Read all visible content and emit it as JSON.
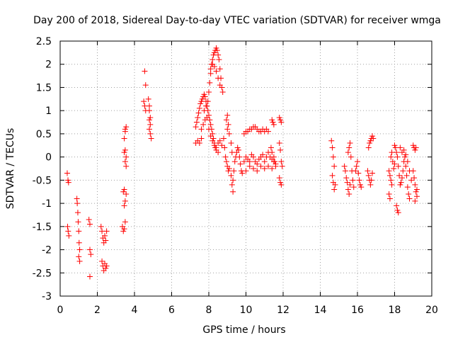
{
  "chart_data": {
    "type": "scatter",
    "title": "Day 200 of 2018, Sidereal Day-to-day VTEC variation (SDTVAR) for receiver wmga",
    "xlabel": "GPS time / hours",
    "ylabel": "SDTVAR / TECUs",
    "xlim": [
      0,
      20
    ],
    "ylim": [
      -3,
      2.5
    ],
    "xticks": [
      "0",
      "2",
      "4",
      "6",
      "8",
      "10",
      "12",
      "14",
      "16",
      "18",
      "20"
    ],
    "yticks": [
      "-3",
      "-2.5",
      "-2",
      "-1.5",
      "-1",
      "-0.5",
      "0",
      "0.5",
      "1",
      "1.5",
      "2",
      "2.5"
    ],
    "grid": true,
    "marker": "+",
    "color": "#ff0000",
    "series": [
      {
        "name": "SDTVAR",
        "points": [
          [
            0.38,
            -0.35
          ],
          [
            0.42,
            -0.5
          ],
          [
            0.45,
            -0.55
          ],
          [
            0.4,
            -1.5
          ],
          [
            0.43,
            -1.6
          ],
          [
            0.47,
            -1.7
          ],
          [
            0.9,
            -0.9
          ],
          [
            0.92,
            -1.0
          ],
          [
            0.95,
            -1.2
          ],
          [
            0.97,
            -1.4
          ],
          [
            1.0,
            -1.6
          ],
          [
            1.02,
            -1.85
          ],
          [
            1.05,
            -2.0
          ],
          [
            1.0,
            -2.15
          ],
          [
            1.05,
            -2.25
          ],
          [
            1.55,
            -1.35
          ],
          [
            1.6,
            -1.45
          ],
          [
            1.6,
            -2.0
          ],
          [
            1.65,
            -2.1
          ],
          [
            1.6,
            -2.58
          ],
          [
            2.2,
            -1.5
          ],
          [
            2.25,
            -1.6
          ],
          [
            2.3,
            -1.75
          ],
          [
            2.35,
            -1.85
          ],
          [
            2.4,
            -1.7
          ],
          [
            2.45,
            -1.8
          ],
          [
            2.5,
            -1.6
          ],
          [
            2.25,
            -2.25
          ],
          [
            2.3,
            -2.35
          ],
          [
            2.35,
            -2.45
          ],
          [
            2.4,
            -2.3
          ],
          [
            2.45,
            -2.4
          ],
          [
            2.5,
            -2.35
          ],
          [
            3.35,
            -1.5
          ],
          [
            3.4,
            -1.6
          ],
          [
            3.45,
            -1.55
          ],
          [
            3.5,
            -1.4
          ],
          [
            3.45,
            -1.05
          ],
          [
            3.5,
            -0.95
          ],
          [
            3.55,
            -0.8
          ],
          [
            3.4,
            -0.75
          ],
          [
            3.45,
            -0.7
          ],
          [
            3.5,
            -0.1
          ],
          [
            3.55,
            0.0
          ],
          [
            3.45,
            0.1
          ],
          [
            3.5,
            0.15
          ],
          [
            3.55,
            -0.2
          ],
          [
            3.45,
            0.4
          ],
          [
            3.5,
            0.55
          ],
          [
            3.55,
            0.65
          ],
          [
            3.5,
            0.6
          ],
          [
            4.55,
            1.85
          ],
          [
            4.6,
            1.55
          ],
          [
            4.5,
            1.2
          ],
          [
            4.55,
            1.1
          ],
          [
            4.6,
            1.0
          ],
          [
            4.75,
            1.25
          ],
          [
            4.8,
            1.1
          ],
          [
            4.8,
            1.0
          ],
          [
            4.85,
            0.85
          ],
          [
            4.8,
            0.8
          ],
          [
            4.85,
            0.7
          ],
          [
            4.8,
            0.6
          ],
          [
            4.85,
            0.5
          ],
          [
            4.9,
            0.4
          ],
          [
            7.3,
            0.3
          ],
          [
            7.4,
            0.35
          ],
          [
            7.5,
            0.3
          ],
          [
            7.6,
            0.4
          ],
          [
            7.3,
            0.65
          ],
          [
            7.35,
            0.75
          ],
          [
            7.4,
            0.85
          ],
          [
            7.45,
            0.95
          ],
          [
            7.5,
            1.05
          ],
          [
            7.55,
            1.15
          ],
          [
            7.6,
            1.2
          ],
          [
            7.65,
            1.25
          ],
          [
            7.7,
            1.3
          ],
          [
            7.75,
            1.35
          ],
          [
            7.8,
            1.3
          ],
          [
            7.85,
            1.2
          ],
          [
            7.9,
            1.1
          ],
          [
            7.95,
            1.0
          ],
          [
            8.0,
            0.9
          ],
          [
            8.05,
            0.8
          ],
          [
            8.1,
            0.7
          ],
          [
            8.15,
            0.6
          ],
          [
            8.2,
            0.5
          ],
          [
            8.25,
            0.4
          ],
          [
            8.3,
            0.3
          ],
          [
            8.35,
            0.2
          ],
          [
            8.4,
            0.15
          ],
          [
            8.5,
            0.1
          ],
          [
            7.6,
            0.6
          ],
          [
            7.7,
            0.7
          ],
          [
            7.8,
            0.8
          ],
          [
            7.9,
            0.85
          ],
          [
            8.0,
            0.6
          ],
          [
            8.1,
            0.45
          ],
          [
            8.2,
            0.35
          ],
          [
            8.3,
            0.25
          ],
          [
            8.4,
            0.2
          ],
          [
            8.5,
            0.3
          ],
          [
            8.6,
            0.35
          ],
          [
            8.7,
            0.25
          ],
          [
            7.75,
            1.0
          ],
          [
            7.85,
            1.1
          ],
          [
            7.95,
            1.2
          ],
          [
            8.0,
            1.4
          ],
          [
            8.05,
            1.6
          ],
          [
            8.1,
            1.8
          ],
          [
            8.15,
            2.0
          ],
          [
            8.2,
            2.1
          ],
          [
            8.25,
            2.2
          ],
          [
            8.3,
            2.25
          ],
          [
            8.35,
            2.3
          ],
          [
            8.4,
            2.35
          ],
          [
            8.45,
            2.3
          ],
          [
            8.5,
            2.2
          ],
          [
            8.55,
            2.1
          ],
          [
            8.6,
            1.9
          ],
          [
            8.65,
            1.7
          ],
          [
            8.7,
            1.5
          ],
          [
            8.75,
            1.4
          ],
          [
            8.1,
            1.9
          ],
          [
            8.2,
            2.0
          ],
          [
            8.3,
            1.95
          ],
          [
            8.4,
            1.85
          ],
          [
            8.5,
            1.7
          ],
          [
            8.6,
            1.55
          ],
          [
            8.8,
            0.4
          ],
          [
            8.85,
            0.2
          ],
          [
            8.9,
            0.0
          ],
          [
            8.95,
            -0.1
          ],
          [
            9.0,
            -0.2
          ],
          [
            9.05,
            -0.3
          ],
          [
            9.1,
            -0.25
          ],
          [
            9.0,
            0.6
          ],
          [
            8.95,
            0.8
          ],
          [
            9.0,
            0.9
          ],
          [
            9.05,
            0.7
          ],
          [
            9.1,
            0.5
          ],
          [
            9.2,
            0.3
          ],
          [
            9.25,
            0.1
          ],
          [
            9.2,
            -0.4
          ],
          [
            9.25,
            -0.6
          ],
          [
            9.3,
            -0.75
          ],
          [
            9.3,
            -0.5
          ],
          [
            9.35,
            -0.3
          ],
          [
            9.4,
            -0.1
          ],
          [
            9.45,
            0.0
          ],
          [
            9.5,
            0.1
          ],
          [
            9.55,
            0.2
          ],
          [
            9.6,
            0.15
          ],
          [
            9.65,
            0.0
          ],
          [
            9.7,
            -0.15
          ],
          [
            9.75,
            -0.3
          ],
          [
            9.8,
            -0.35
          ],
          [
            9.9,
            0.5
          ],
          [
            10.0,
            0.55
          ],
          [
            10.1,
            0.55
          ],
          [
            10.2,
            0.6
          ],
          [
            10.3,
            0.6
          ],
          [
            10.4,
            0.65
          ],
          [
            10.5,
            0.65
          ],
          [
            10.6,
            0.6
          ],
          [
            10.7,
            0.55
          ],
          [
            10.8,
            0.55
          ],
          [
            10.9,
            0.6
          ],
          [
            11.0,
            0.55
          ],
          [
            11.1,
            0.6
          ],
          [
            11.2,
            0.55
          ],
          [
            9.9,
            -0.1
          ],
          [
            10.0,
            0.0
          ],
          [
            10.1,
            -0.05
          ],
          [
            10.2,
            -0.1
          ],
          [
            10.3,
            0.05
          ],
          [
            10.4,
            0.0
          ],
          [
            10.5,
            -0.1
          ],
          [
            10.6,
            -0.15
          ],
          [
            10.7,
            -0.05
          ],
          [
            10.8,
            0.0
          ],
          [
            10.9,
            0.05
          ],
          [
            11.0,
            -0.1
          ],
          [
            11.1,
            0.0
          ],
          [
            11.2,
            0.1
          ],
          [
            11.3,
            0.0
          ],
          [
            11.4,
            -0.05
          ],
          [
            11.5,
            -0.1
          ],
          [
            10.0,
            -0.3
          ],
          [
            10.2,
            -0.2
          ],
          [
            10.4,
            -0.25
          ],
          [
            10.6,
            -0.3
          ],
          [
            10.8,
            -0.2
          ],
          [
            11.0,
            -0.25
          ],
          [
            11.2,
            -0.2
          ],
          [
            11.4,
            -0.25
          ],
          [
            11.6,
            -0.2
          ],
          [
            11.4,
            0.8
          ],
          [
            11.45,
            0.75
          ],
          [
            11.5,
            0.7
          ],
          [
            11.35,
            0.2
          ],
          [
            11.4,
            0.1
          ],
          [
            11.5,
            0.0
          ],
          [
            11.55,
            -0.1
          ],
          [
            11.6,
            -0.15
          ],
          [
            11.8,
            0.85
          ],
          [
            11.85,
            0.8
          ],
          [
            11.9,
            0.75
          ],
          [
            11.8,
            0.3
          ],
          [
            11.85,
            0.15
          ],
          [
            11.9,
            -0.1
          ],
          [
            11.95,
            -0.2
          ],
          [
            11.8,
            -0.45
          ],
          [
            11.85,
            -0.55
          ],
          [
            11.9,
            -0.6
          ],
          [
            14.6,
            0.35
          ],
          [
            14.65,
            0.2
          ],
          [
            14.7,
            0.0
          ],
          [
            14.75,
            -0.2
          ],
          [
            14.65,
            -0.4
          ],
          [
            14.7,
            -0.55
          ],
          [
            14.75,
            -0.7
          ],
          [
            14.8,
            -0.6
          ],
          [
            15.3,
            -0.2
          ],
          [
            15.35,
            -0.3
          ],
          [
            15.4,
            -0.45
          ],
          [
            15.45,
            -0.55
          ],
          [
            15.5,
            -0.7
          ],
          [
            15.55,
            -0.8
          ],
          [
            15.6,
            -0.6
          ],
          [
            15.5,
            0.1
          ],
          [
            15.55,
            0.2
          ],
          [
            15.6,
            0.3
          ],
          [
            15.65,
            0.0
          ],
          [
            15.7,
            -0.3
          ],
          [
            15.75,
            -0.5
          ],
          [
            15.8,
            -0.65
          ],
          [
            15.9,
            -0.3
          ],
          [
            15.95,
            -0.2
          ],
          [
            16.0,
            -0.1
          ],
          [
            16.05,
            -0.35
          ],
          [
            16.1,
            -0.5
          ],
          [
            16.15,
            -0.6
          ],
          [
            16.2,
            -0.65
          ],
          [
            16.55,
            -0.3
          ],
          [
            16.6,
            -0.4
          ],
          [
            16.65,
            -0.5
          ],
          [
            16.7,
            -0.6
          ],
          [
            16.75,
            -0.5
          ],
          [
            16.8,
            -0.35
          ],
          [
            16.6,
            0.2
          ],
          [
            16.65,
            0.3
          ],
          [
            16.7,
            0.35
          ],
          [
            16.75,
            0.4
          ],
          [
            16.8,
            0.45
          ],
          [
            16.85,
            0.4
          ],
          [
            17.7,
            -0.3
          ],
          [
            17.75,
            -0.4
          ],
          [
            17.8,
            -0.5
          ],
          [
            17.85,
            -0.6
          ],
          [
            17.7,
            -0.8
          ],
          [
            17.75,
            -0.9
          ],
          [
            17.8,
            0.0
          ],
          [
            17.85,
            0.1
          ],
          [
            17.9,
            -0.1
          ],
          [
            17.95,
            -0.25
          ],
          [
            18.0,
            -0.15
          ],
          [
            18.0,
            0.25
          ],
          [
            18.05,
            0.2
          ],
          [
            18.1,
            0.1
          ],
          [
            18.15,
            0.0
          ],
          [
            18.2,
            -0.2
          ],
          [
            18.25,
            -0.4
          ],
          [
            18.3,
            -0.6
          ],
          [
            18.35,
            -0.55
          ],
          [
            18.4,
            -0.45
          ],
          [
            18.45,
            -0.3
          ],
          [
            18.5,
            -0.1
          ],
          [
            18.55,
            0.0
          ],
          [
            18.6,
            -0.2
          ],
          [
            18.65,
            -0.4
          ],
          [
            18.7,
            -0.65
          ],
          [
            18.75,
            -0.8
          ],
          [
            18.8,
            -0.9
          ],
          [
            18.1,
            -1.05
          ],
          [
            18.15,
            -1.15
          ],
          [
            18.2,
            -1.2
          ],
          [
            18.3,
            0.2
          ],
          [
            18.4,
            0.1
          ],
          [
            18.5,
            0.15
          ],
          [
            18.6,
            0.05
          ],
          [
            18.7,
            -0.1
          ],
          [
            18.8,
            -0.3
          ],
          [
            18.9,
            -0.5
          ],
          [
            19.0,
            0.25
          ],
          [
            19.05,
            0.2
          ],
          [
            19.1,
            0.15
          ],
          [
            19.15,
            0.2
          ],
          [
            19.0,
            -0.3
          ],
          [
            19.05,
            -0.45
          ],
          [
            19.1,
            -0.6
          ],
          [
            19.15,
            -0.75
          ],
          [
            19.2,
            -0.85
          ],
          [
            19.1,
            -0.95
          ],
          [
            19.2,
            -0.7
          ]
        ]
      }
    ]
  }
}
